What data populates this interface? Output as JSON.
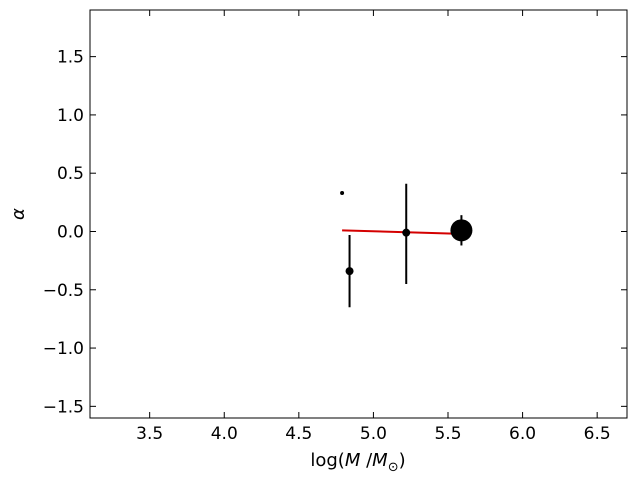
{
  "chart_data": {
    "type": "scatter",
    "xlabel_parts": {
      "prefix": "log(",
      "italic1": "M",
      "mid": " /",
      "italic2": "M",
      "subscript": "⊙",
      "suffix": ")"
    },
    "ylabel": "α",
    "xlim": [
      3.1,
      6.7
    ],
    "ylim": [
      -1.6,
      1.9
    ],
    "xticks": [
      3.5,
      4.0,
      4.5,
      5.0,
      5.5,
      6.0,
      6.5
    ],
    "yticks": [
      -1.5,
      -1.0,
      -0.5,
      0.0,
      0.5,
      1.0,
      1.5
    ],
    "grid": false,
    "points": [
      {
        "x": 4.79,
        "y": 0.33,
        "yerr_low": null,
        "yerr_high": null,
        "marker_size": 2
      },
      {
        "x": 4.84,
        "y": -0.34,
        "yerr_low": -0.65,
        "yerr_high": -0.03,
        "marker_size": 4
      },
      {
        "x": 5.22,
        "y": -0.01,
        "yerr_low": -0.45,
        "yerr_high": 0.41,
        "marker_size": 4
      },
      {
        "x": 5.59,
        "y": 0.01,
        "yerr_low": -0.12,
        "yerr_high": 0.14,
        "marker_size": 11
      }
    ],
    "fit_line": {
      "x": [
        4.79,
        5.59
      ],
      "y": [
        0.01,
        -0.02
      ],
      "color": "#d40000"
    },
    "point_color": "#000000"
  }
}
